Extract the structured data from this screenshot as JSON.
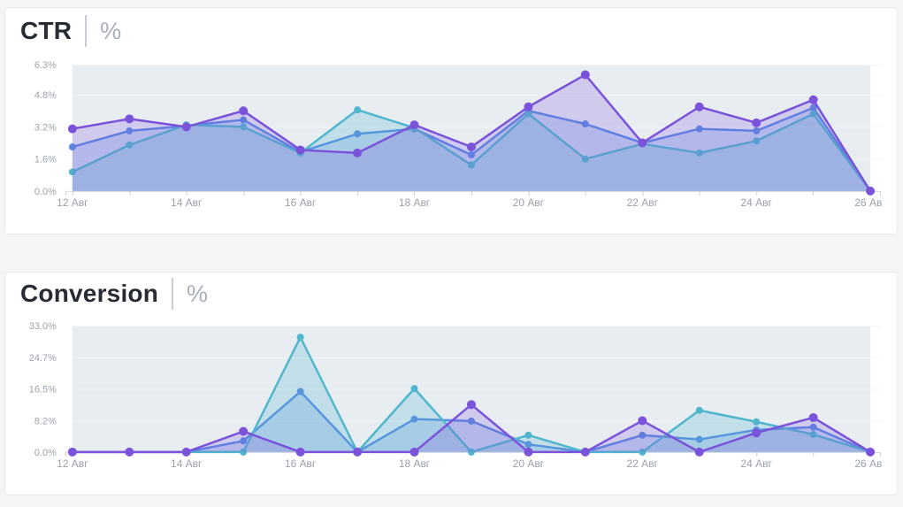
{
  "chart_data": [
    {
      "type": "area",
      "title": "CTR",
      "unit": "%",
      "categories": [
        "12 Авг",
        "13 Авг",
        "14 Авг",
        "15 Авг",
        "16 Авг",
        "17 Авг",
        "18 Авг",
        "19 Авг",
        "20 Авг",
        "21 Авг",
        "22 Авг",
        "23 Авг",
        "24 Авг",
        "25 Авг",
        "26 Авг"
      ],
      "x_label_interval": 2,
      "y_ticks": [
        0.0,
        1.6,
        3.2,
        4.8,
        6.3
      ],
      "y_tick_labels": [
        "0.0%",
        "1.6%",
        "3.2%",
        "4.8%",
        "6.3%"
      ],
      "ylim": [
        0,
        6.3
      ],
      "grid": true,
      "legend": "none",
      "series": [
        {
          "name": "blue",
          "color": "#5a8be2",
          "values": [
            2.2,
            3.0,
            3.25,
            3.55,
            1.95,
            2.85,
            3.1,
            1.8,
            4.0,
            3.35,
            2.4,
            3.1,
            3.0,
            4.15,
            0
          ]
        },
        {
          "name": "teal",
          "color": "#50b6ce",
          "values": [
            0.95,
            2.3,
            3.3,
            3.2,
            1.9,
            4.05,
            3.15,
            1.3,
            3.85,
            1.6,
            2.35,
            1.9,
            2.5,
            3.85,
            0
          ]
        },
        {
          "name": "purple",
          "color": "#7b52da",
          "values": [
            3.1,
            3.6,
            3.2,
            4.0,
            2.05,
            1.9,
            3.3,
            2.2,
            4.2,
            5.8,
            2.4,
            4.2,
            3.4,
            4.55,
            0
          ]
        }
      ]
    },
    {
      "type": "area",
      "title": "Conversion",
      "unit": "%",
      "categories": [
        "12 Авг",
        "13 Авг",
        "14 Авг",
        "15 Авг",
        "16 Авг",
        "17 Авг",
        "18 Авг",
        "19 Авг",
        "20 Авг",
        "21 Авг",
        "22 Авг",
        "23 Авг",
        "24 Авг",
        "25 Авг",
        "26 Авг"
      ],
      "x_label_interval": 2,
      "y_ticks": [
        0.0,
        8.2,
        16.5,
        24.7,
        33.0
      ],
      "y_tick_labels": [
        "0.0%",
        "8.2%",
        "16.5%",
        "24.7%",
        "33.0%"
      ],
      "ylim": [
        0,
        33.0
      ],
      "grid": true,
      "legend": "none",
      "series": [
        {
          "name": "blue",
          "color": "#5a8be2",
          "values": [
            0,
            0,
            0,
            2.9,
            15.8,
            0,
            8.6,
            8.1,
            2.0,
            0,
            4.4,
            3.3,
            5.8,
            6.5,
            0
          ]
        },
        {
          "name": "teal",
          "color": "#50b6ce",
          "values": [
            0,
            0,
            0,
            0,
            30.0,
            0,
            16.6,
            0,
            4.4,
            0,
            0,
            10.9,
            7.9,
            4.6,
            0
          ]
        },
        {
          "name": "purple",
          "color": "#7b52da",
          "values": [
            0,
            0,
            0,
            5.4,
            0,
            0,
            0,
            12.4,
            0,
            0,
            8.2,
            0,
            5.0,
            9.0,
            0
          ]
        }
      ]
    }
  ]
}
